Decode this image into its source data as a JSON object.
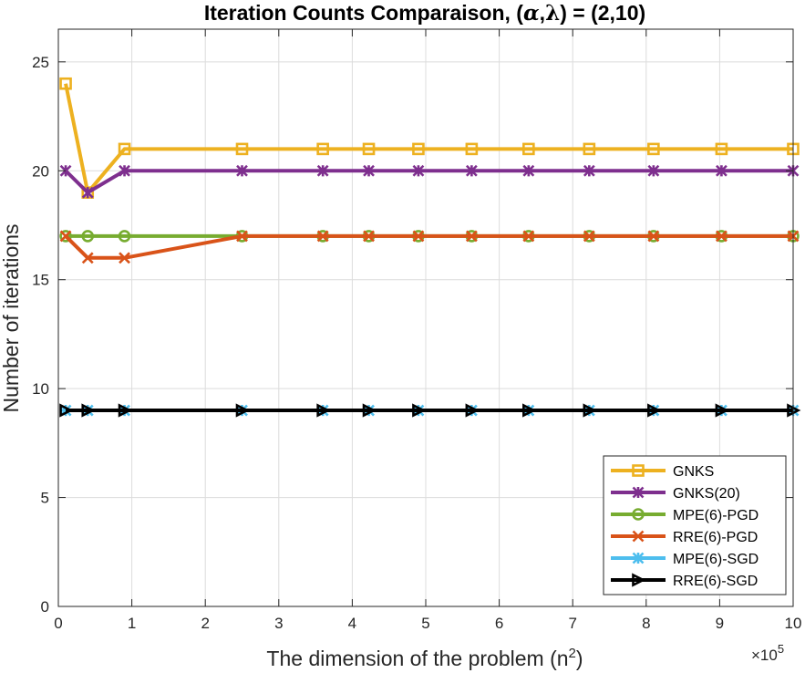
{
  "chart_data": {
    "type": "line",
    "title_parts": [
      "Iteration Counts Comparaison, (",
      "α",
      ",",
      "λ",
      ") = (2,10)"
    ],
    "xlabel": "The dimension of the problem (n",
    "xlabel_sup": "2",
    "xlabel_end": ")",
    "ylabel": "Number of iterations",
    "x_multiplier": "×10",
    "x_multiplier_exp": "5",
    "xlim": [
      0,
      10
    ],
    "ylim": [
      0,
      26.5
    ],
    "xticks": [
      0,
      1,
      2,
      3,
      4,
      5,
      6,
      7,
      8,
      9,
      10
    ],
    "yticks": [
      0,
      5,
      10,
      15,
      20,
      25
    ],
    "grid": true,
    "legend_position": "bottom-right",
    "x": [
      0.1,
      0.4,
      0.9,
      2.5,
      3.6,
      4.225,
      4.9,
      5.625,
      6.4,
      7.225,
      8.1,
      9.025,
      10.0
    ],
    "series": [
      {
        "name": "GNKS",
        "color": "#EDB120",
        "marker": "square",
        "values": [
          24,
          19,
          21,
          21,
          21,
          21,
          21,
          21,
          21,
          21,
          21,
          21,
          21
        ]
      },
      {
        "name": "GNKS(20)",
        "color": "#7E2F8E",
        "marker": "star",
        "values": [
          20,
          19,
          20,
          20,
          20,
          20,
          20,
          20,
          20,
          20,
          20,
          20,
          20
        ]
      },
      {
        "name": "MPE(6)-PGD",
        "color": "#77AC30",
        "marker": "circle",
        "values": [
          17,
          17,
          17,
          17,
          17,
          17,
          17,
          17,
          17,
          17,
          17,
          17,
          17
        ]
      },
      {
        "name": "RRE(6)-PGD",
        "color": "#D95319",
        "marker": "x",
        "values": [
          17,
          16,
          16,
          17,
          17,
          17,
          17,
          17,
          17,
          17,
          17,
          17,
          17
        ]
      },
      {
        "name": "MPE(6)-SGD",
        "color": "#4DBEEE",
        "marker": "asterisk",
        "values": [
          9,
          9,
          9,
          9,
          9,
          9,
          9,
          9,
          9,
          9,
          9,
          9,
          9
        ]
      },
      {
        "name": "RRE(6)-SGD",
        "color": "#000000",
        "marker": "triangle-right",
        "values": [
          9,
          9,
          9,
          9,
          9,
          9,
          9,
          9,
          9,
          9,
          9,
          9,
          9
        ]
      }
    ]
  }
}
